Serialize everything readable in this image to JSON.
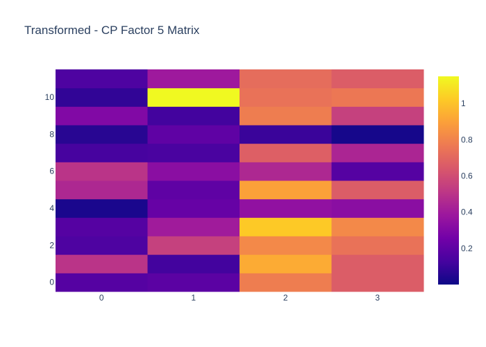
{
  "chart_data": {
    "type": "heatmap",
    "title": "Transformed - CP Factor 5 Matrix",
    "xlabel": "",
    "ylabel": "",
    "x": [
      0,
      1,
      2,
      3
    ],
    "y": [
      0,
      1,
      2,
      3,
      4,
      5,
      6,
      7,
      8,
      9,
      10,
      11
    ],
    "x_ticks": [
      0,
      1,
      2,
      3
    ],
    "y_ticks": [
      0,
      2,
      4,
      6,
      8,
      10
    ],
    "colorbar": {
      "range": [
        0.0,
        1.15
      ],
      "ticks": [
        0.2,
        0.4,
        0.6,
        0.8,
        1
      ],
      "tick_labels": [
        "0.2",
        "0.4",
        "0.6",
        "0.8",
        "1"
      ],
      "colorscale": [
        "#0d0887",
        "#46039f",
        "#7201a8",
        "#9c179e",
        "#bd3786",
        "#d8576b",
        "#ed7953",
        "#fb9f3a",
        "#fdca26",
        "#f0f921"
      ]
    },
    "z": [
      [
        0.17,
        0.19,
        0.78,
        0.66
      ],
      [
        0.5,
        0.12,
        0.93,
        0.66
      ],
      [
        0.15,
        0.55,
        0.82,
        0.74
      ],
      [
        0.17,
        0.4,
        1.02,
        0.82
      ],
      [
        0.03,
        0.22,
        0.35,
        0.33
      ],
      [
        0.45,
        0.2,
        0.9,
        0.66
      ],
      [
        0.5,
        0.33,
        0.45,
        0.17
      ],
      [
        0.13,
        0.14,
        0.67,
        0.44
      ],
      [
        0.06,
        0.2,
        0.1,
        0.02
      ],
      [
        0.3,
        0.12,
        0.78,
        0.55
      ],
      [
        0.08,
        1.15,
        0.74,
        0.76
      ],
      [
        0.15,
        0.39,
        0.72,
        0.66
      ]
    ]
  }
}
